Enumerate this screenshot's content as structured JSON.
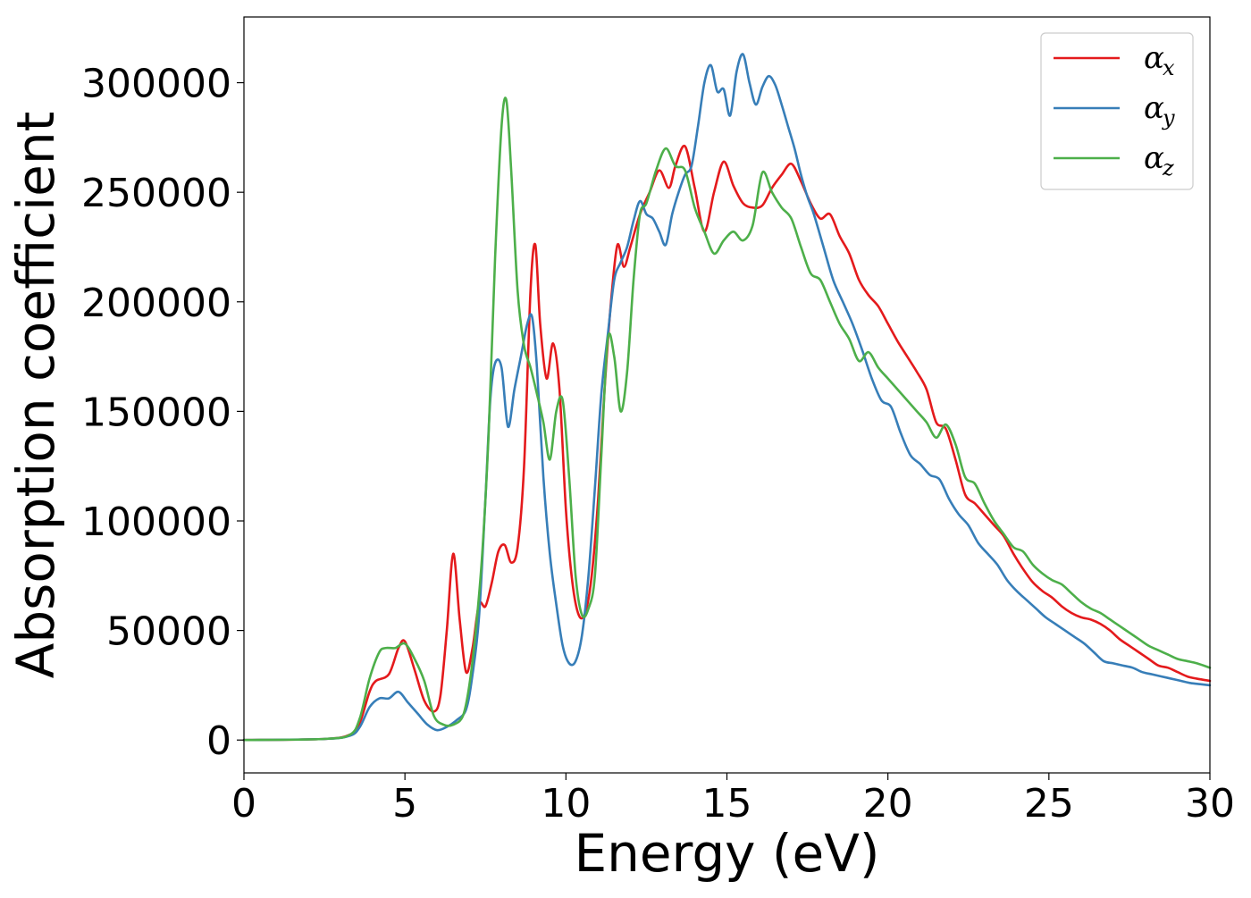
{
  "chart_data": {
    "type": "line",
    "title": "",
    "xlabel": "Energy (eV)",
    "ylabel": "Absorption coefficient",
    "xlim": [
      0,
      30
    ],
    "ylim": [
      -15000,
      330000
    ],
    "xticks": [
      0,
      5,
      10,
      15,
      20,
      25,
      30
    ],
    "yticks": [
      0,
      50000,
      100000,
      150000,
      200000,
      250000,
      300000
    ],
    "xtick_labels": [
      "0",
      "5",
      "10",
      "15",
      "20",
      "25",
      "30"
    ],
    "ytick_labels": [
      "0",
      "50000",
      "100000",
      "150000",
      "200000",
      "250000",
      "300000"
    ],
    "grid": false,
    "legend_position": "top-right",
    "series": [
      {
        "name": "α_x",
        "legend_main": "α",
        "legend_sub": "x",
        "color": "#e41a1c",
        "x": [
          0,
          2.5,
          3.3,
          3.6,
          3.9,
          4.1,
          4.5,
          4.8,
          5.0,
          5.3,
          5.6,
          5.9,
          6.1,
          6.3,
          6.5,
          6.7,
          6.9,
          7.1,
          7.3,
          7.5,
          7.7,
          7.9,
          8.1,
          8.3,
          8.5,
          8.7,
          8.9,
          9.05,
          9.2,
          9.4,
          9.6,
          9.8,
          10.0,
          10.2,
          10.4,
          10.6,
          10.8,
          11.0,
          11.2,
          11.4,
          11.6,
          11.8,
          12.0,
          12.3,
          12.6,
          12.9,
          13.2,
          13.4,
          13.7,
          14.0,
          14.3,
          14.6,
          14.9,
          15.2,
          15.5,
          15.8,
          16.1,
          16.4,
          16.7,
          17.0,
          17.3,
          17.6,
          17.9,
          18.2,
          18.5,
          18.8,
          19.1,
          19.4,
          19.7,
          20.0,
          20.3,
          20.6,
          20.9,
          21.2,
          21.5,
          21.8,
          22.1,
          22.4,
          22.7,
          23.0,
          23.3,
          23.6,
          23.9,
          24.2,
          24.5,
          24.8,
          25.1,
          25.4,
          25.7,
          26.0,
          26.3,
          26.6,
          26.9,
          27.2,
          27.5,
          27.8,
          28.1,
          28.4,
          28.7,
          29.0,
          29.3,
          29.6,
          30.0
        ],
        "y": [
          0,
          500,
          2500,
          8000,
          22000,
          27000,
          30000,
          42000,
          45000,
          32000,
          18000,
          13000,
          20000,
          50000,
          85000,
          55000,
          31000,
          42000,
          62000,
          61000,
          72000,
          86000,
          89000,
          81000,
          88000,
          125000,
          205000,
          226000,
          190000,
          165000,
          181000,
          160000,
          105000,
          72000,
          57000,
          58000,
          75000,
          110000,
          160000,
          200000,
          226000,
          216000,
          225000,
          240000,
          250000,
          260000,
          252000,
          262000,
          271000,
          252000,
          232000,
          250000,
          264000,
          253000,
          245000,
          243000,
          244000,
          252000,
          258000,
          263000,
          255000,
          245000,
          238000,
          240000,
          230000,
          222000,
          210000,
          203000,
          198000,
          190000,
          182000,
          175000,
          168000,
          160000,
          145000,
          142000,
          128000,
          112000,
          108000,
          103000,
          98000,
          93000,
          85000,
          78000,
          72000,
          68000,
          65000,
          61000,
          58000,
          56000,
          55000,
          53000,
          50000,
          46000,
          43000,
          40000,
          37000,
          34000,
          33000,
          31000,
          29000,
          28000,
          27000
        ]
      },
      {
        "name": "α_y",
        "legend_main": "α",
        "legend_sub": "y",
        "color": "#377eb8",
        "x": [
          0,
          2.5,
          3.3,
          3.6,
          3.9,
          4.2,
          4.5,
          4.8,
          5.1,
          5.4,
          5.7,
          6.0,
          6.3,
          6.6,
          6.9,
          7.1,
          7.3,
          7.5,
          7.65,
          7.8,
          8.0,
          8.2,
          8.4,
          8.6,
          8.8,
          8.95,
          9.1,
          9.3,
          9.5,
          9.7,
          9.9,
          10.1,
          10.3,
          10.5,
          10.7,
          10.9,
          11.1,
          11.3,
          11.5,
          11.7,
          11.9,
          12.1,
          12.3,
          12.5,
          12.7,
          12.9,
          13.1,
          13.3,
          13.5,
          13.7,
          13.9,
          14.1,
          14.3,
          14.5,
          14.7,
          14.9,
          15.1,
          15.3,
          15.5,
          15.7,
          15.9,
          16.1,
          16.3,
          16.5,
          16.7,
          16.9,
          17.1,
          17.3,
          17.5,
          17.7,
          18.0,
          18.3,
          18.6,
          18.9,
          19.2,
          19.5,
          19.8,
          20.1,
          20.4,
          20.7,
          21.0,
          21.3,
          21.6,
          21.9,
          22.2,
          22.5,
          22.8,
          23.1,
          23.4,
          23.7,
          24.0,
          24.3,
          24.6,
          24.9,
          25.2,
          25.5,
          25.8,
          26.1,
          26.4,
          26.7,
          27.0,
          27.3,
          27.6,
          27.9,
          28.2,
          28.5,
          28.8,
          29.1,
          29.4,
          29.7,
          30.0
        ],
        "y": [
          0,
          500,
          2000,
          6000,
          15000,
          19000,
          19000,
          22000,
          17000,
          12000,
          7000,
          4500,
          6000,
          9000,
          14000,
          30000,
          56000,
          110000,
          155000,
          172000,
          170000,
          143000,
          160000,
          175000,
          190000,
          193000,
          170000,
          120000,
          85000,
          62000,
          43000,
          35000,
          36000,
          48000,
          75000,
          115000,
          158000,
          185000,
          210000,
          218000,
          225000,
          237000,
          246000,
          240000,
          238000,
          232000,
          226000,
          240000,
          250000,
          258000,
          262000,
          280000,
          300000,
          308000,
          296000,
          297000,
          285000,
          305000,
          313000,
          300000,
          290000,
          298000,
          303000,
          299000,
          290000,
          280000,
          270000,
          258000,
          248000,
          240000,
          225000,
          210000,
          200000,
          190000,
          178000,
          165000,
          155000,
          152000,
          140000,
          130000,
          126000,
          121000,
          119000,
          110000,
          103000,
          98000,
          90000,
          85000,
          80000,
          73000,
          68000,
          64000,
          60000,
          56000,
          53000,
          50000,
          47000,
          44000,
          40000,
          36000,
          35000,
          34000,
          33000,
          31000,
          30000,
          29000,
          28000,
          27000,
          26000,
          25500,
          25000
        ]
      },
      {
        "name": "α_z",
        "legend_main": "α",
        "legend_sub": "z",
        "color": "#4daf4a",
        "x": [
          0,
          2.5,
          3.3,
          3.6,
          3.9,
          4.2,
          4.4,
          4.7,
          5.0,
          5.3,
          5.6,
          5.9,
          6.2,
          6.5,
          6.8,
          7.0,
          7.2,
          7.4,
          7.6,
          7.8,
          8.0,
          8.15,
          8.3,
          8.5,
          8.7,
          8.9,
          9.1,
          9.3,
          9.5,
          9.7,
          9.9,
          10.1,
          10.3,
          10.5,
          10.7,
          10.9,
          11.1,
          11.3,
          11.5,
          11.7,
          11.9,
          12.1,
          12.3,
          12.5,
          12.8,
          13.1,
          13.4,
          13.7,
          14.0,
          14.3,
          14.6,
          14.9,
          15.2,
          15.5,
          15.8,
          16.1,
          16.4,
          16.7,
          17.0,
          17.3,
          17.6,
          17.9,
          18.2,
          18.5,
          18.8,
          19.1,
          19.4,
          19.7,
          20.0,
          20.3,
          20.6,
          20.9,
          21.2,
          21.5,
          21.8,
          22.1,
          22.4,
          22.7,
          23.0,
          23.3,
          23.6,
          23.9,
          24.2,
          24.5,
          24.8,
          25.1,
          25.4,
          25.7,
          26.0,
          26.3,
          26.6,
          26.9,
          27.2,
          27.5,
          27.8,
          28.1,
          28.4,
          28.7,
          29.0,
          29.3,
          29.6,
          30.0
        ],
        "y": [
          0,
          500,
          2500,
          10000,
          28000,
          40000,
          42000,
          42000,
          44000,
          37000,
          27000,
          11000,
          7000,
          7000,
          11000,
          25000,
          50000,
          85000,
          140000,
          220000,
          280000,
          292000,
          260000,
          205000,
          180000,
          170000,
          158000,
          145000,
          128000,
          150000,
          155000,
          120000,
          75000,
          57000,
          60000,
          75000,
          130000,
          183000,
          175000,
          150000,
          168000,
          210000,
          240000,
          245000,
          260000,
          270000,
          262000,
          260000,
          243000,
          232000,
          222000,
          228000,
          232000,
          228000,
          235000,
          259000,
          250000,
          243000,
          238000,
          225000,
          213000,
          210000,
          200000,
          190000,
          183000,
          173000,
          177000,
          170000,
          165000,
          160000,
          155000,
          150000,
          145000,
          138000,
          144000,
          135000,
          120000,
          117000,
          108000,
          100000,
          94000,
          88000,
          86000,
          80000,
          76000,
          73000,
          71000,
          67000,
          63000,
          60000,
          58000,
          55000,
          52000,
          49000,
          46000,
          43000,
          41000,
          39000,
          37000,
          36000,
          35000,
          33000
        ]
      }
    ]
  }
}
